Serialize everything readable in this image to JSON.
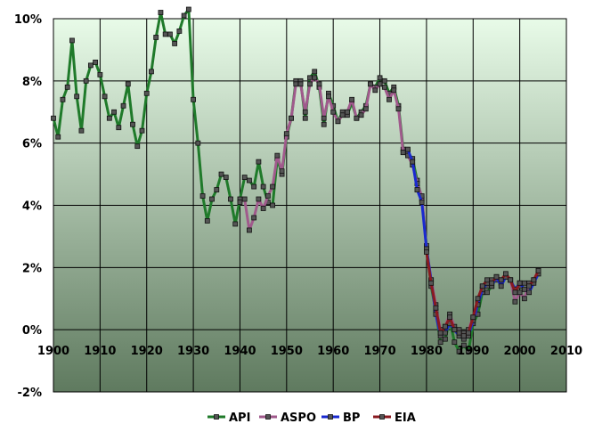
{
  "chart_data": {
    "type": "line",
    "title": "",
    "xlabel": "",
    "ylabel": "",
    "xlim": [
      1900,
      2010
    ],
    "ylim": [
      -2,
      10
    ],
    "x_ticks": [
      "1900",
      "1910",
      "1920",
      "1930",
      "1940",
      "1950",
      "1960",
      "1970",
      "1980",
      "1990",
      "2000",
      "2010"
    ],
    "y_ticks": [
      "-2%",
      "0%",
      "2%",
      "4%",
      "6%",
      "8%",
      "10%"
    ],
    "grid": true,
    "legend_position": "bottom-center",
    "background_gradient": [
      "#e8fbe8",
      "#5f7a5f"
    ],
    "series": [
      {
        "name": "API",
        "color": "#1f7a2a",
        "x": [
          1900,
          1901,
          1902,
          1903,
          1904,
          1905,
          1906,
          1907,
          1908,
          1909,
          1910,
          1911,
          1912,
          1913,
          1914,
          1915,
          1916,
          1917,
          1918,
          1919,
          1920,
          1921,
          1922,
          1923,
          1924,
          1925,
          1926,
          1927,
          1928,
          1929,
          1930,
          1931,
          1932,
          1933,
          1934,
          1935,
          1936,
          1937,
          1938,
          1939,
          1940,
          1941,
          1942,
          1943,
          1944,
          1945,
          1946,
          1947,
          1948,
          1949,
          1950,
          1951,
          1952,
          1953,
          1954,
          1955,
          1956,
          1957,
          1958,
          1959,
          1960,
          1961,
          1962,
          1963,
          1964,
          1965,
          1966,
          1967,
          1968,
          1969,
          1970,
          1971,
          1972,
          1973,
          1974,
          1975,
          1976,
          1977,
          1978,
          1979,
          1980,
          1981,
          1982,
          1983,
          1984,
          1985,
          1986,
          1987,
          1988,
          1989,
          1990,
          1991,
          1992,
          1993,
          1994,
          1995,
          1996,
          1997,
          1998,
          1999,
          2000,
          2001,
          2002,
          2003,
          2004
        ],
        "y": [
          6.8,
          6.2,
          7.4,
          7.8,
          9.3,
          7.5,
          6.4,
          8.0,
          8.5,
          8.6,
          8.2,
          7.5,
          6.8,
          7.0,
          6.5,
          7.2,
          7.9,
          6.6,
          5.9,
          6.4,
          7.6,
          8.3,
          9.4,
          10.2,
          9.5,
          9.5,
          9.2,
          9.6,
          10.1,
          10.3,
          7.4,
          6.0,
          4.3,
          3.5,
          4.2,
          4.5,
          5.0,
          4.9,
          4.2,
          3.4,
          4.2,
          4.9,
          4.8,
          4.6,
          5.4,
          4.6,
          4.1,
          4.0,
          5.5,
          5.0,
          6.2,
          6.8,
          8.0,
          8.0,
          6.8,
          8.1,
          8.3,
          7.8,
          6.6,
          7.6,
          7.2,
          6.7,
          7.0,
          6.9,
          7.3,
          6.8,
          7.0,
          7.2,
          7.9,
          7.8,
          8.1,
          8.0,
          7.6,
          7.8,
          7.2,
          5.8,
          5.7,
          5.5,
          4.8,
          4.2,
          2.7,
          1.4,
          0.6,
          -0.4,
          -0.3,
          0.3,
          -0.4,
          -0.7,
          -0.5,
          -0.7,
          0.2,
          0.5,
          1.2,
          1.2,
          1.4,
          1.7,
          1.5,
          1.7,
          1.6,
          1.3,
          1.4,
          1.3,
          1.4,
          1.6,
          1.8
        ]
      },
      {
        "name": "ASPO",
        "color": "#a05a8c",
        "x": [
          1940,
          1941,
          1942,
          1943,
          1944,
          1945,
          1946,
          1947,
          1948,
          1949,
          1950,
          1951,
          1952,
          1953,
          1954,
          1955,
          1956,
          1957,
          1958,
          1959,
          1960,
          1961,
          1962,
          1963,
          1964,
          1965,
          1966,
          1967,
          1968,
          1969,
          1970,
          1971,
          1972,
          1973,
          1974,
          1975,
          1976,
          1977,
          1978,
          1979,
          1980,
          1981,
          1982,
          1983,
          1984,
          1985,
          1986,
          1987,
          1988,
          1989,
          1990,
          1991,
          1992,
          1993,
          1994,
          1995,
          1996,
          1997,
          1998,
          1999,
          2000,
          2001,
          2002,
          2003,
          2004
        ],
        "y": [
          4.1,
          4.2,
          3.2,
          3.6,
          4.2,
          3.9,
          4.3,
          4.6,
          5.6,
          5.1,
          6.3,
          6.8,
          7.9,
          7.9,
          7.0,
          7.9,
          8.1,
          7.9,
          6.8,
          7.5,
          7.0,
          6.7,
          6.9,
          7.0,
          7.4,
          6.8,
          6.9,
          7.1,
          7.9,
          7.7,
          7.9,
          7.8,
          7.4,
          7.7,
          7.1,
          5.7,
          5.6,
          5.3,
          4.7,
          4.3,
          2.6,
          1.6,
          0.8,
          0.0,
          0.1,
          0.5,
          0.1,
          0.0,
          -0.1,
          0.0,
          0.4,
          0.9,
          1.4,
          1.4,
          1.6,
          1.6,
          1.6,
          1.7,
          1.6,
          0.9,
          1.2,
          1.0,
          1.5,
          1.6,
          1.9
        ]
      },
      {
        "name": "BP",
        "color": "#1a2ad0",
        "x": [
          1975,
          1976,
          1977,
          1978,
          1979,
          1980,
          1981,
          1982,
          1983,
          1984,
          1985,
          1986,
          1987,
          1988,
          1989,
          1990,
          1991,
          1992,
          1993,
          1994,
          1995,
          1996,
          1997,
          1998,
          1999,
          2000,
          2001,
          2002,
          2003,
          2004
        ],
        "y": [
          5.7,
          5.8,
          5.4,
          4.5,
          4.1,
          2.6,
          1.6,
          0.5,
          -0.2,
          -0.1,
          0.2,
          0.0,
          -0.2,
          -0.3,
          -0.2,
          0.3,
          0.8,
          1.3,
          1.5,
          1.4,
          1.7,
          1.4,
          1.7,
          1.6,
          1.3,
          1.5,
          1.3,
          1.2,
          1.5,
          1.8
        ]
      },
      {
        "name": "EIA",
        "color": "#8a1a20",
        "x": [
          1980,
          1981,
          1982,
          1983,
          1984,
          1985,
          1986,
          1987,
          1988,
          1989,
          1990,
          1991,
          1992,
          1993,
          1994,
          1995,
          1996,
          1997,
          1998,
          1999,
          2000,
          2001,
          2002,
          2003,
          2004
        ],
        "y": [
          2.5,
          1.5,
          0.7,
          -0.1,
          0.1,
          0.4,
          0.0,
          -0.1,
          -0.2,
          -0.1,
          0.4,
          1.0,
          1.4,
          1.6,
          1.5,
          1.7,
          1.6,
          1.8,
          1.6,
          1.2,
          1.5,
          1.5,
          1.4,
          1.6,
          1.9
        ]
      }
    ]
  }
}
